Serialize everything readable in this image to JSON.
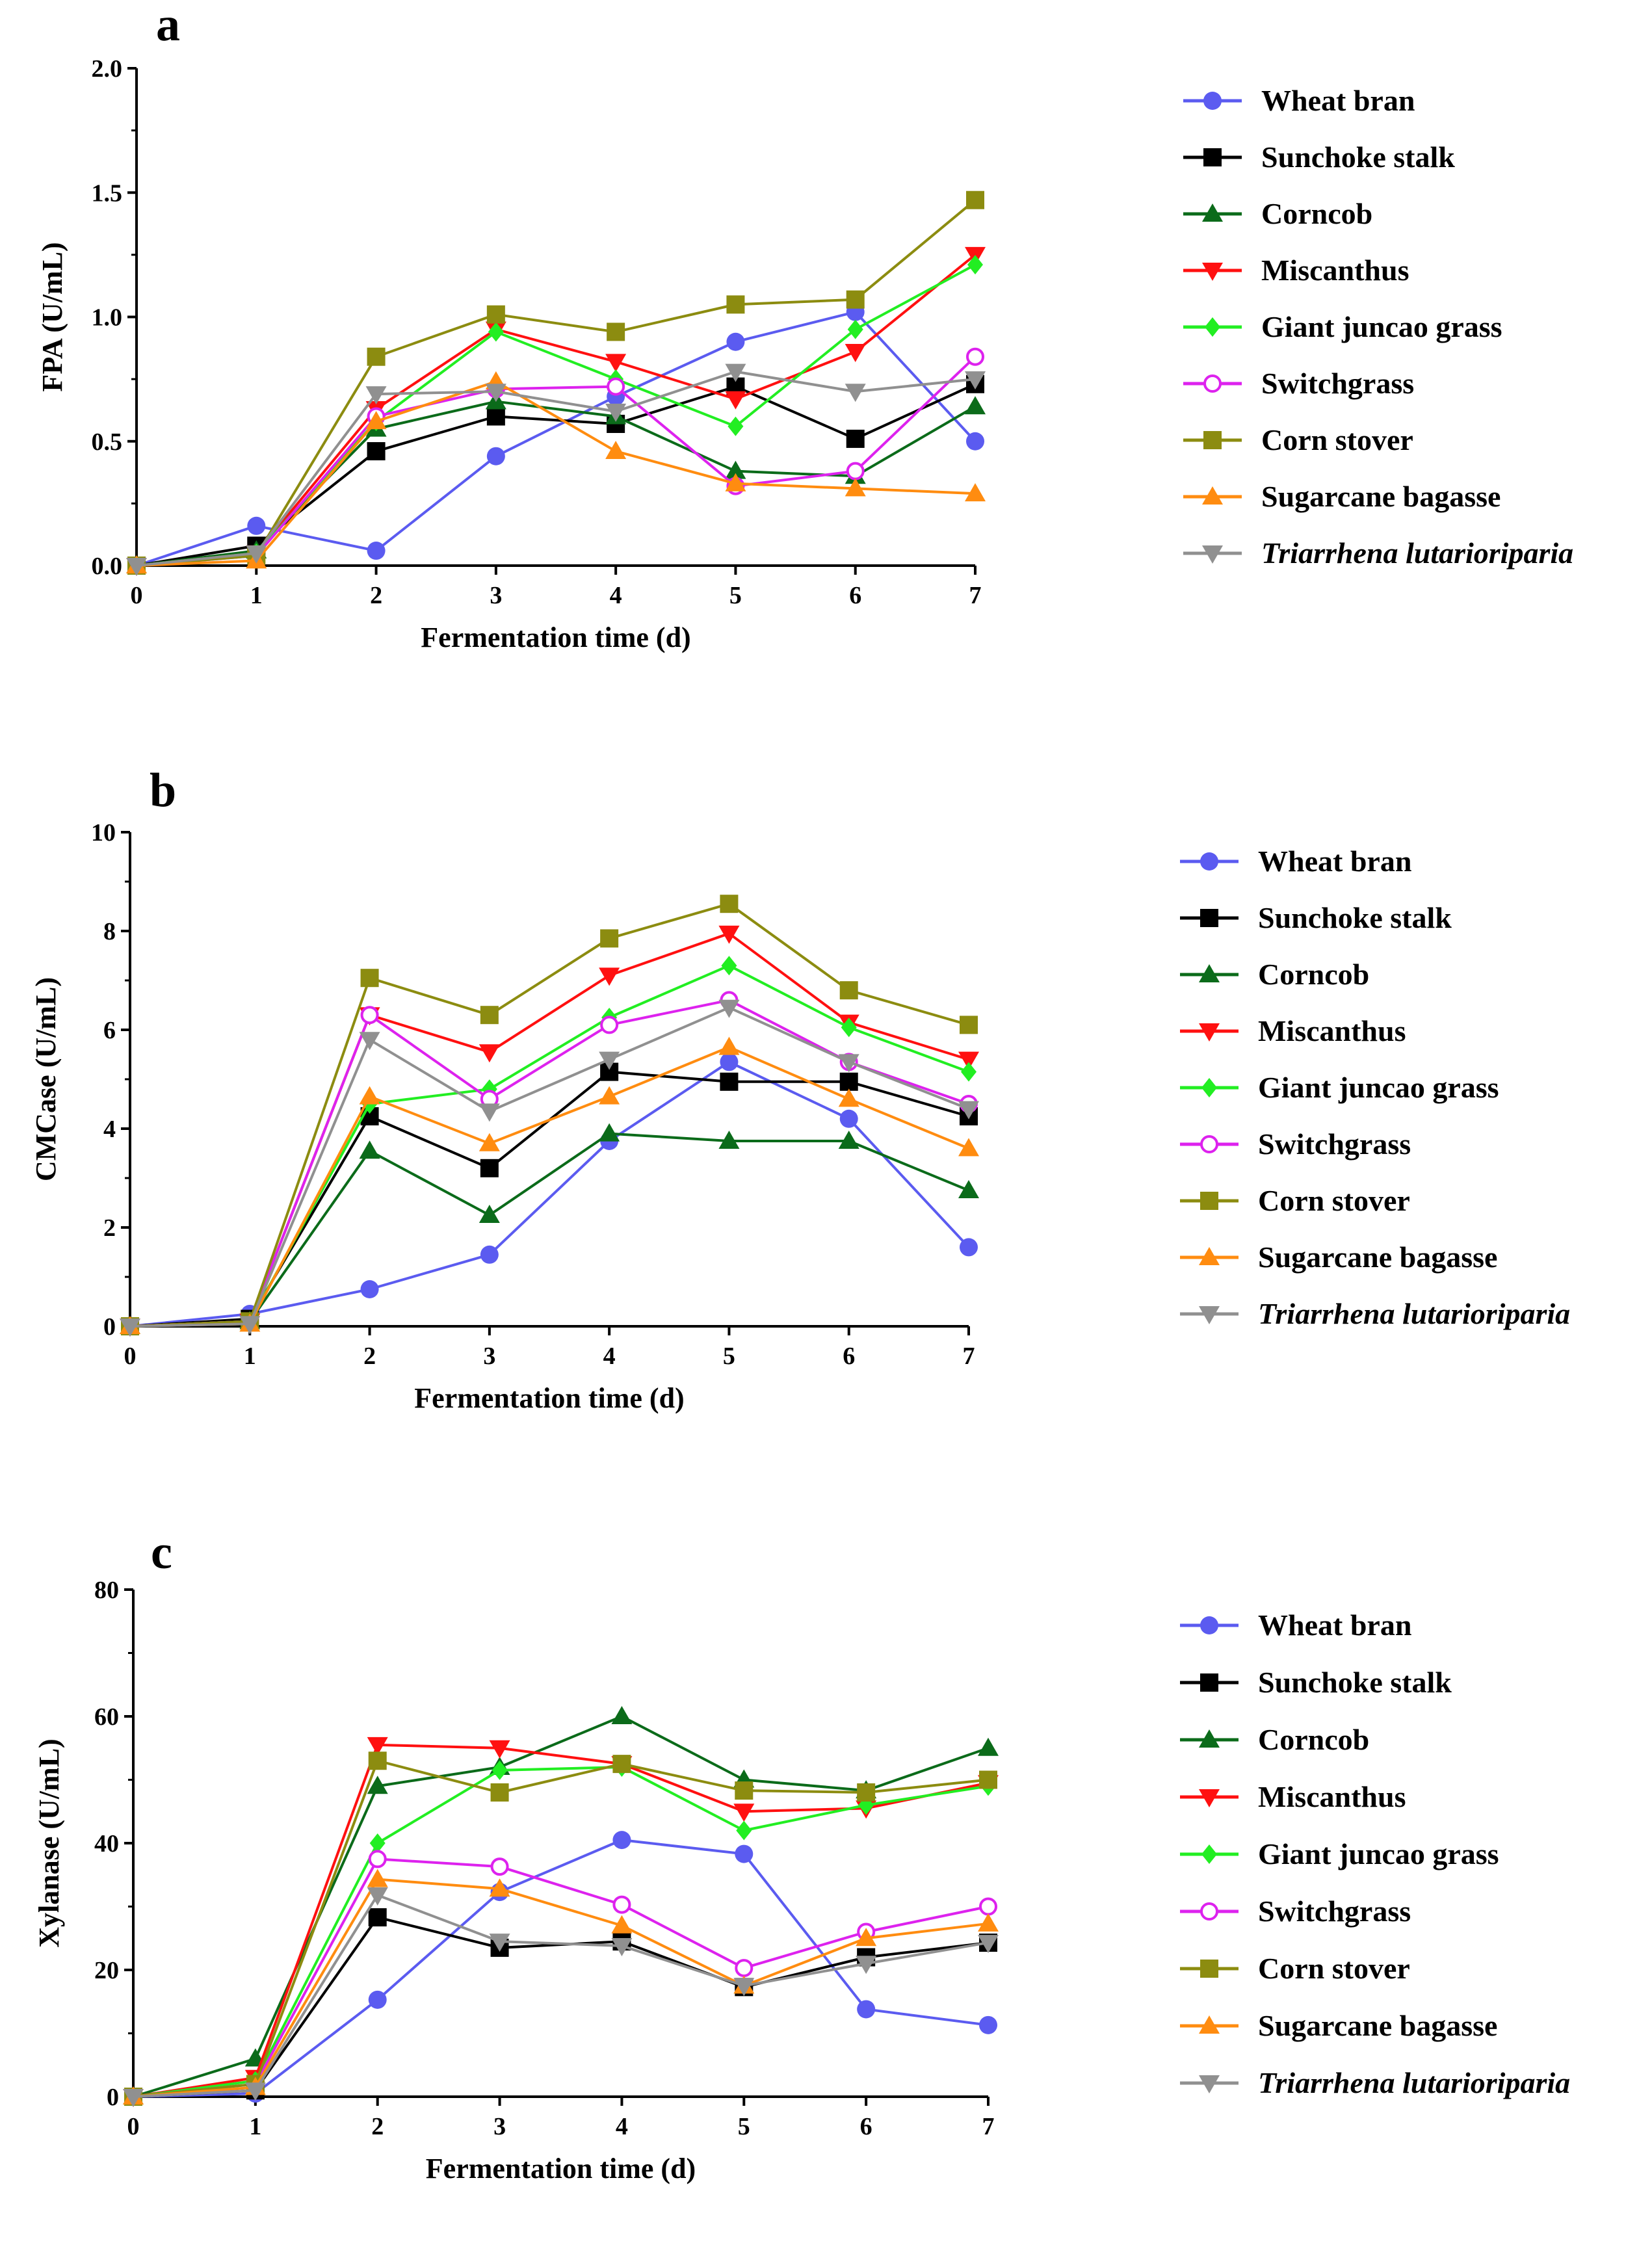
{
  "series_styles": [
    {
      "name": "Wheat bran",
      "color": "#5b5bf0",
      "marker": "circle",
      "italic": false
    },
    {
      "name": "Sunchoke stalk",
      "color": "#000000",
      "marker": "square",
      "italic": false
    },
    {
      "name": "Corncob",
      "color": "#0b6b1a",
      "marker": "triangle-up",
      "italic": false
    },
    {
      "name": "Miscanthus",
      "color": "#ff1010",
      "marker": "triangle-down",
      "italic": false
    },
    {
      "name": "Giant juncao grass",
      "color": "#22ee22",
      "marker": "diamond",
      "italic": false
    },
    {
      "name": "Switchgrass",
      "color": "#dd22ee",
      "marker": "circle-open",
      "italic": false
    },
    {
      "name": "Corn stover",
      "color": "#8c8c10",
      "marker": "square",
      "italic": false
    },
    {
      "name": "Sugarcane bagasse",
      "color": "#ff8c10",
      "marker": "triangle-up",
      "italic": false
    },
    {
      "name": "Triarrhena lutarioriparia",
      "color": "#909090",
      "marker": "triangle-down",
      "italic": true
    }
  ],
  "chart_data": [
    {
      "panel": "a",
      "type": "line",
      "xlabel": "Fermentation time (d)",
      "ylabel": "FPA (U/mL)",
      "x": [
        0,
        1,
        2,
        3,
        4,
        5,
        6,
        7
      ],
      "xlim": [
        0,
        7
      ],
      "ylim": [
        0,
        2.0
      ],
      "yticks": [
        "0.0",
        "0.5",
        "1.0",
        "1.5",
        "2.0"
      ],
      "xticks": [
        "0",
        "1",
        "2",
        "3",
        "4",
        "5",
        "6",
        "7"
      ],
      "legend_position": "right",
      "series": [
        {
          "name": "Wheat bran",
          "values": [
            0,
            0.16,
            0.06,
            0.44,
            0.68,
            0.9,
            1.02,
            0.5
          ]
        },
        {
          "name": "Sunchoke stalk",
          "values": [
            0,
            0.08,
            0.46,
            0.6,
            0.57,
            0.72,
            0.51,
            0.73
          ]
        },
        {
          "name": "Corncob",
          "values": [
            0,
            0.06,
            0.55,
            0.66,
            0.6,
            0.38,
            0.36,
            0.64
          ]
        },
        {
          "name": "Miscanthus",
          "values": [
            0,
            0.05,
            0.63,
            0.95,
            0.82,
            0.67,
            0.86,
            1.25
          ]
        },
        {
          "name": "Giant juncao grass",
          "values": [
            0,
            0.05,
            0.58,
            0.94,
            0.75,
            0.56,
            0.95,
            1.21
          ]
        },
        {
          "name": "Switchgrass",
          "values": [
            0,
            0.04,
            0.6,
            0.71,
            0.72,
            0.32,
            0.38,
            0.84
          ]
        },
        {
          "name": "Corn stover",
          "values": [
            0,
            0.04,
            0.84,
            1.01,
            0.94,
            1.05,
            1.07,
            1.47
          ]
        },
        {
          "name": "Sugarcane bagasse",
          "values": [
            0,
            0.02,
            0.58,
            0.74,
            0.46,
            0.33,
            0.31,
            0.29
          ]
        },
        {
          "name": "Triarrhena lutarioriparia",
          "values": [
            0,
            0.05,
            0.69,
            0.7,
            0.62,
            0.78,
            0.7,
            0.75
          ]
        }
      ]
    },
    {
      "panel": "b",
      "type": "line",
      "xlabel": "Fermentation time (d)",
      "ylabel": "CMCase (U/mL)",
      "x": [
        0,
        1,
        2,
        3,
        4,
        5,
        6,
        7
      ],
      "xlim": [
        0,
        7
      ],
      "ylim": [
        0,
        10
      ],
      "yticks": [
        "0",
        "2",
        "4",
        "6",
        "8",
        "10"
      ],
      "xticks": [
        "0",
        "1",
        "2",
        "3",
        "4",
        "5",
        "6",
        "7"
      ],
      "legend_position": "right",
      "series": [
        {
          "name": "Wheat bran",
          "values": [
            0,
            0.25,
            0.75,
            1.45,
            3.75,
            5.35,
            4.2,
            1.6
          ]
        },
        {
          "name": "Sunchoke stalk",
          "values": [
            0,
            0.15,
            4.25,
            3.2,
            5.15,
            4.95,
            4.95,
            4.25
          ]
        },
        {
          "name": "Corncob",
          "values": [
            0,
            0.1,
            3.55,
            2.25,
            3.9,
            3.75,
            3.75,
            2.75
          ]
        },
        {
          "name": "Miscanthus",
          "values": [
            0,
            0.1,
            6.3,
            5.55,
            7.1,
            7.95,
            6.15,
            5.4
          ]
        },
        {
          "name": "Giant juncao grass",
          "values": [
            0,
            0.1,
            4.5,
            4.8,
            6.25,
            7.3,
            6.05,
            5.15
          ]
        },
        {
          "name": "Switchgrass",
          "values": [
            0,
            0.1,
            6.3,
            4.6,
            6.1,
            6.6,
            5.35,
            4.5
          ]
        },
        {
          "name": "Corn stover",
          "values": [
            0,
            0.1,
            7.05,
            6.3,
            7.85,
            8.55,
            6.8,
            6.1
          ]
        },
        {
          "name": "Sugarcane bagasse",
          "values": [
            0,
            0.05,
            4.65,
            3.7,
            4.65,
            5.65,
            4.6,
            3.6
          ]
        },
        {
          "name": "Triarrhena lutarioriparia",
          "values": [
            0,
            0.05,
            5.8,
            4.35,
            5.4,
            6.45,
            5.35,
            4.4
          ]
        }
      ]
    },
    {
      "panel": "c",
      "type": "line",
      "xlabel": "Fermentation time (d)",
      "ylabel": "Xylanase (U/mL)",
      "x": [
        0,
        1,
        2,
        3,
        4,
        5,
        6,
        7
      ],
      "xlim": [
        0,
        7
      ],
      "ylim": [
        0,
        80
      ],
      "yticks": [
        "0",
        "20",
        "40",
        "60",
        "80"
      ],
      "xticks": [
        "0",
        "1",
        "2",
        "3",
        "4",
        "5",
        "6",
        "7"
      ],
      "legend_position": "right",
      "series": [
        {
          "name": "Wheat bran",
          "values": [
            0,
            0.5,
            15.3,
            32.3,
            40.5,
            38.3,
            13.8,
            11.3
          ]
        },
        {
          "name": "Sunchoke stalk",
          "values": [
            0,
            1.0,
            28.3,
            23.5,
            24.5,
            17.3,
            22.0,
            24.3
          ]
        },
        {
          "name": "Corncob",
          "values": [
            0,
            6.0,
            49.0,
            52.0,
            60.0,
            50.0,
            48.3,
            55.0
          ]
        },
        {
          "name": "Miscanthus",
          "values": [
            0,
            3.0,
            55.5,
            55.0,
            52.5,
            45.0,
            45.5,
            49.5
          ]
        },
        {
          "name": "Giant juncao grass",
          "values": [
            0,
            2.5,
            40.0,
            51.5,
            52.0,
            42.0,
            46.0,
            49.0
          ]
        },
        {
          "name": "Switchgrass",
          "values": [
            0,
            2.0,
            37.5,
            36.3,
            30.3,
            20.3,
            26.0,
            30.0
          ]
        },
        {
          "name": "Corn stover",
          "values": [
            0,
            2.0,
            53.0,
            48.0,
            52.5,
            48.3,
            48.0,
            50.0
          ]
        },
        {
          "name": "Sugarcane bagasse",
          "values": [
            0,
            1.5,
            34.3,
            32.8,
            27.0,
            17.5,
            25.0,
            27.3
          ]
        },
        {
          "name": "Triarrhena lutarioriparia",
          "values": [
            0,
            1.0,
            31.8,
            24.5,
            23.8,
            17.5,
            21.0,
            24.3
          ]
        }
      ]
    }
  ]
}
